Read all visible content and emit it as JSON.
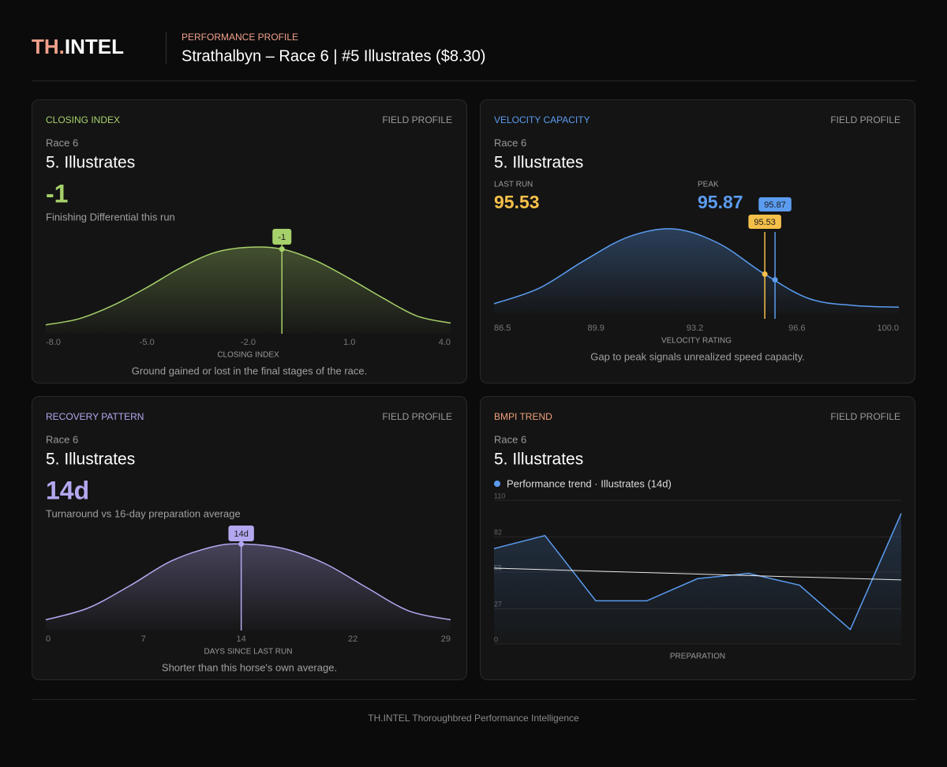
{
  "header": {
    "logo_accent": "TH.",
    "logo_main": "INTEL",
    "kicker": "PERFORMANCE PROFILE",
    "title": "Strathalbyn – Race 6 | #5 Illustrates ($8.30)"
  },
  "chart_data": [
    {
      "type": "density",
      "label": "CLOSING INDEX",
      "tag": "FIELD PROFILE",
      "race": "Race 6",
      "horse": "5. Illustrates",
      "marker": -1,
      "subtitle": "Finishing Differential this run",
      "x_label": "CLOSING INDEX",
      "caption": "Ground gained or lost in the final stages of the race.",
      "color": "#a6d06a",
      "x": [
        -8,
        -7,
        -6,
        -5,
        -4,
        -3,
        -2,
        -1,
        0,
        1,
        2,
        3,
        4
      ],
      "values": [
        0.1,
        0.17,
        0.32,
        0.52,
        0.74,
        0.91,
        0.97,
        0.95,
        0.82,
        0.62,
        0.4,
        0.2,
        0.12
      ],
      "xlim": [
        -8,
        4
      ],
      "ylim": [
        0,
        1
      ],
      "xticks": [
        {
          "value": -8,
          "label": "-8.0"
        },
        {
          "value": -5,
          "label": "-5.0"
        },
        {
          "value": -2,
          "label": "-2.0"
        },
        {
          "value": 1,
          "label": "1.0"
        },
        {
          "value": 4,
          "label": "4.0"
        }
      ]
    },
    {
      "type": "velocity",
      "label": "VELOCITY CAPACITY",
      "tag": "FIELD PROFILE",
      "race": "Race 6",
      "horse": "5. Illustrates",
      "last_run_label": "LAST RUN",
      "last_run": 95.53,
      "last_run_color": "#f5c04a",
      "peak_label": "PEAK",
      "peak": 95.87,
      "peak_color": "#5b9cf0",
      "x_label": "VELOCITY RATING",
      "caption": "Gap to peak signals unrealized speed capacity.",
      "color": "#5b9cf0",
      "x": [
        86.5,
        88,
        89.5,
        91,
        92.5,
        94,
        95.5,
        97,
        98.5,
        100
      ],
      "values": [
        0.12,
        0.3,
        0.62,
        0.9,
        0.99,
        0.82,
        0.47,
        0.18,
        0.1,
        0.08
      ],
      "xlim": [
        86.5,
        100
      ],
      "ylim": [
        0,
        1
      ],
      "xticks": [
        86.5,
        89.9,
        93.2,
        96.6,
        {
          "value": 100,
          "label": "100.0"
        }
      ]
    },
    {
      "type": "density",
      "label": "RECOVERY PATTERN",
      "tag": "FIELD PROFILE",
      "race": "Race 6",
      "horse": "5. Illustrates",
      "marker": 14,
      "marker_label": "14d",
      "subtitle": "Turnaround vs 16-day preparation average",
      "x_label": "DAYS SINCE LAST RUN",
      "caption": "Shorter than this horse's own average.",
      "color": "#b3a8f0",
      "x": [
        0,
        3,
        6,
        9,
        12,
        14,
        17,
        20,
        23,
        26,
        29
      ],
      "values": [
        0.12,
        0.25,
        0.5,
        0.78,
        0.94,
        0.97,
        0.92,
        0.75,
        0.48,
        0.22,
        0.12
      ],
      "xlim": [
        0,
        29
      ],
      "ylim": [
        0,
        1
      ],
      "xticks": [
        0,
        7,
        14,
        22,
        29
      ]
    },
    {
      "type": "line",
      "label": "BMPI TREND",
      "tag": "FIELD PROFILE",
      "race": "Race 6",
      "horse": "5. Illustrates",
      "color": "#f0a07a",
      "series": [
        {
          "name": "Performance trend · Illustrates (14d)",
          "color": "#5b9cf0",
          "values": [
            73,
            83,
            33,
            33,
            50,
            54,
            45,
            11,
            100
          ]
        }
      ],
      "trend": [
        58,
        49
      ],
      "x_label": "PREPARATION",
      "ylim": [
        0,
        110
      ],
      "yticks": [
        0,
        27,
        55,
        82,
        110
      ],
      "grid": true
    }
  ],
  "footer": "TH.INTEL Thoroughbred Performance Intelligence"
}
